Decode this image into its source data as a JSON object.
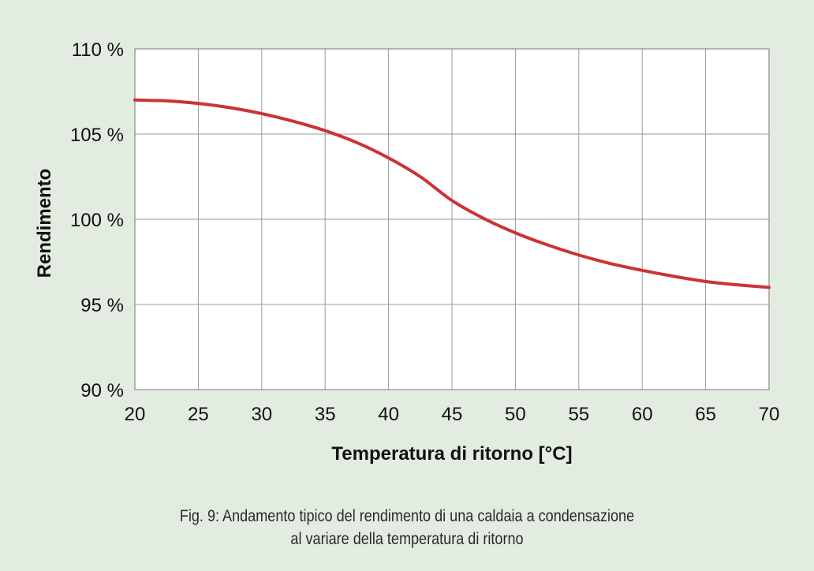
{
  "caption": {
    "line1": "Fig. 9: Andamento tipico del rendimento di una caldaia a condensazione",
    "line2": "al variare della temperatura di ritorno"
  },
  "chart_data": {
    "type": "line",
    "title": "",
    "xlabel": "Temperatura di ritorno [°C]",
    "ylabel": "Rendimento",
    "xlim": [
      20,
      70
    ],
    "ylim": [
      90,
      110
    ],
    "x_ticks": [
      20,
      25,
      30,
      35,
      40,
      45,
      50,
      55,
      60,
      65,
      70
    ],
    "x_tick_labels": [
      "20",
      "25",
      "30",
      "35",
      "40",
      "45",
      "50",
      "55",
      "60",
      "65",
      "70"
    ],
    "y_ticks": [
      90,
      95,
      100,
      105,
      110
    ],
    "y_tick_labels": [
      "90 %",
      "95 %",
      "100 %",
      "105 %",
      "110 %"
    ],
    "grid": true,
    "series": [
      {
        "color": "#cc3333",
        "x": [
          20,
          22.5,
          25,
          27.5,
          30,
          32.5,
          35,
          37.5,
          40,
          42.5,
          45,
          47.5,
          50,
          52.5,
          55,
          57.5,
          60,
          62.5,
          65,
          67.5,
          70
        ],
        "y": [
          107.0,
          106.95,
          106.8,
          106.55,
          106.2,
          105.75,
          105.2,
          104.5,
          103.6,
          102.5,
          101.1,
          100.05,
          99.2,
          98.5,
          97.9,
          97.4,
          97.0,
          96.65,
          96.35,
          96.15,
          96.0
        ]
      }
    ]
  }
}
